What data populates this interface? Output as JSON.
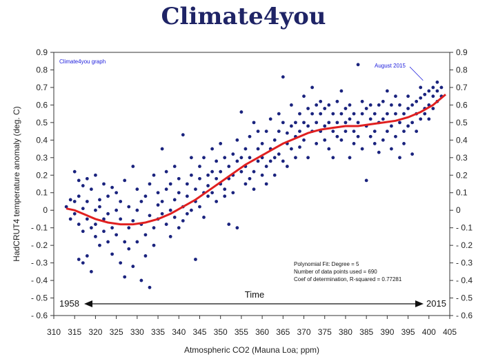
{
  "title": "Climate4you",
  "chart_data": {
    "type": "scatter",
    "xlabel": "Atmospheric CO2 (Mauna Loa; ppm)",
    "ylabel": "HadCRUT4 temperature anomaly (deg. C)",
    "xlim": [
      310,
      405
    ],
    "ylim": [
      -0.6,
      0.9
    ],
    "x_ticks": [
      310,
      315,
      320,
      325,
      330,
      335,
      340,
      345,
      350,
      355,
      360,
      365,
      370,
      375,
      380,
      385,
      390,
      395,
      400,
      405
    ],
    "y_ticks": [
      -0.6,
      -0.5,
      -0.4,
      -0.3,
      -0.2,
      -0.1,
      0,
      0.1,
      0.2,
      0.3,
      0.4,
      0.5,
      0.6,
      0.7,
      0.8,
      0.9
    ],
    "y_tick_labels": [
      "- 0.6",
      "- 0.5",
      "- 0.4",
      "- 0.3",
      "- 0.2",
      "- 0.1",
      "0",
      "0.1",
      "0.2",
      "0.3",
      "0.4",
      "0.5",
      "0.6",
      "0.7",
      "0.8",
      "0.9"
    ],
    "grid": false,
    "watermark": "Climate4you graph",
    "annotation": "August 2015",
    "annotation_point": [
      398.6,
      0.74
    ],
    "time_label": "Time",
    "time_start": "1958",
    "time_end": "2015",
    "fit_text": [
      "Polynomial Fit:  Degree = 5",
      "Number of data points used = 690",
      "Coef of determination, R-squared = 0.77281"
    ],
    "fit_curve": {
      "x": [
        313,
        315,
        317,
        320,
        323,
        326,
        329,
        332,
        335,
        338,
        341,
        344,
        347,
        350,
        353,
        356,
        359,
        362,
        365,
        368,
        371,
        374,
        377,
        380,
        383,
        386,
        389,
        392,
        395,
        398,
        401,
        404
      ],
      "y": [
        0.01,
        0.0,
        -0.02,
        -0.05,
        -0.07,
        -0.08,
        -0.08,
        -0.07,
        -0.05,
        -0.02,
        0.02,
        0.06,
        0.11,
        0.16,
        0.21,
        0.26,
        0.3,
        0.34,
        0.38,
        0.41,
        0.44,
        0.46,
        0.47,
        0.48,
        0.48,
        0.49,
        0.5,
        0.51,
        0.53,
        0.56,
        0.6,
        0.66
      ],
      "color": "#e02020"
    },
    "series": [
      {
        "color": "#1a237e",
        "points": [
          [
            313,
            0.02
          ],
          [
            314,
            0.06
          ],
          [
            314,
            -0.05
          ],
          [
            315,
            0.05
          ],
          [
            315,
            -0.02
          ],
          [
            315,
            0.22
          ],
          [
            316,
            0.17
          ],
          [
            316,
            -0.08
          ],
          [
            316,
            0.08
          ],
          [
            316,
            -0.28
          ],
          [
            317,
            0.14
          ],
          [
            317,
            -0.3
          ],
          [
            317,
            0.01
          ],
          [
            317,
            -0.12
          ],
          [
            318,
            0.18
          ],
          [
            318,
            -0.26
          ],
          [
            318,
            0.05
          ],
          [
            318,
            -0.05
          ],
          [
            319,
            -0.35
          ],
          [
            319,
            0.12
          ],
          [
            319,
            -0.1
          ],
          [
            320,
            0.2
          ],
          [
            320,
            -0.15
          ],
          [
            320,
            0.0
          ],
          [
            320,
            -0.08
          ],
          [
            321,
            0.02
          ],
          [
            321,
            -0.2
          ],
          [
            321,
            0.06
          ],
          [
            322,
            -0.12
          ],
          [
            322,
            0.15
          ],
          [
            322,
            -0.05
          ],
          [
            323,
            -0.18
          ],
          [
            323,
            0.08
          ],
          [
            323,
            -0.02
          ],
          [
            324,
            -0.1
          ],
          [
            324,
            0.13
          ],
          [
            324,
            -0.25
          ],
          [
            325,
            0.0
          ],
          [
            325,
            -0.14
          ],
          [
            325,
            0.1
          ],
          [
            326,
            -0.3
          ],
          [
            326,
            0.05
          ],
          [
            326,
            -0.05
          ],
          [
            327,
            -0.38
          ],
          [
            327,
            0.17
          ],
          [
            327,
            -0.18
          ],
          [
            328,
            -0.22
          ],
          [
            328,
            0.02
          ],
          [
            328,
            -0.1
          ],
          [
            329,
            -0.32
          ],
          [
            329,
            0.25
          ],
          [
            329,
            -0.06
          ],
          [
            330,
            -0.18
          ],
          [
            330,
            0.12
          ],
          [
            330,
            0.0
          ],
          [
            331,
            -0.4
          ],
          [
            331,
            -0.08
          ],
          [
            331,
            0.05
          ],
          [
            332,
            -0.26
          ],
          [
            332,
            0.08
          ],
          [
            332,
            -0.14
          ],
          [
            333,
            -0.44
          ],
          [
            333,
            -0.03
          ],
          [
            333,
            0.15
          ],
          [
            334,
            -0.1
          ],
          [
            334,
            0.2
          ],
          [
            334,
            -0.2
          ],
          [
            335,
            0.03
          ],
          [
            335,
            -0.05
          ],
          [
            335,
            0.1
          ],
          [
            336,
            0.35
          ],
          [
            336,
            -0.02
          ],
          [
            336,
            0.05
          ],
          [
            337,
            0.12
          ],
          [
            337,
            -0.08
          ],
          [
            337,
            0.22
          ],
          [
            338,
            0.0
          ],
          [
            338,
            -0.15
          ],
          [
            338,
            0.15
          ],
          [
            339,
            0.06
          ],
          [
            339,
            -0.04
          ],
          [
            339,
            0.25
          ],
          [
            340,
            0.1
          ],
          [
            340,
            -0.1
          ],
          [
            340,
            0.18
          ],
          [
            341,
            0.43
          ],
          [
            341,
            0.02
          ],
          [
            341,
            -0.06
          ],
          [
            342,
            0.15
          ],
          [
            342,
            0.08
          ],
          [
            342,
            -0.02
          ],
          [
            343,
            0.2
          ],
          [
            343,
            0.0
          ],
          [
            343,
            0.3
          ],
          [
            344,
            -0.28
          ],
          [
            344,
            0.12
          ],
          [
            344,
            0.05
          ],
          [
            345,
            0.18
          ],
          [
            345,
            0.25
          ],
          [
            345,
            0.02
          ],
          [
            346,
            0.1
          ],
          [
            346,
            0.3
          ],
          [
            346,
            -0.04
          ],
          [
            347,
            0.2
          ],
          [
            347,
            0.08
          ],
          [
            347,
            0.14
          ],
          [
            348,
            0.35
          ],
          [
            348,
            0.1
          ],
          [
            348,
            0.22
          ],
          [
            349,
            0.05
          ],
          [
            349,
            0.18
          ],
          [
            349,
            0.28
          ],
          [
            350,
            0.15
          ],
          [
            350,
            0.38
          ],
          [
            350,
            0.22
          ],
          [
            351,
            0.12
          ],
          [
            351,
            0.3
          ],
          [
            351,
            0.08
          ],
          [
            352,
            0.25
          ],
          [
            352,
            0.18
          ],
          [
            352,
            -0.08
          ],
          [
            353,
            0.32
          ],
          [
            353,
            0.2
          ],
          [
            353,
            0.1
          ],
          [
            354,
            -0.1
          ],
          [
            354,
            0.28
          ],
          [
            354,
            0.4
          ],
          [
            355,
            0.56
          ],
          [
            355,
            0.22
          ],
          [
            355,
            0.3
          ],
          [
            356,
            0.15
          ],
          [
            356,
            0.35
          ],
          [
            356,
            0.25
          ],
          [
            357,
            0.42
          ],
          [
            357,
            0.18
          ],
          [
            357,
            0.3
          ],
          [
            358,
            0.5
          ],
          [
            358,
            0.22
          ],
          [
            358,
            0.12
          ],
          [
            359,
            0.35
          ],
          [
            359,
            0.28
          ],
          [
            359,
            0.45
          ],
          [
            360,
            0.2
          ],
          [
            360,
            0.38
          ],
          [
            360,
            0.3
          ],
          [
            361,
            0.15
          ],
          [
            361,
            0.45
          ],
          [
            361,
            0.25
          ],
          [
            362,
            0.52
          ],
          [
            362,
            0.35
          ],
          [
            362,
            0.28
          ],
          [
            363,
            0.2
          ],
          [
            363,
            0.4
          ],
          [
            363,
            0.3
          ],
          [
            364,
            0.55
          ],
          [
            364,
            0.32
          ],
          [
            364,
            0.45
          ],
          [
            365,
            0.76
          ],
          [
            365,
            0.28
          ],
          [
            365,
            0.5
          ],
          [
            366,
            0.38
          ],
          [
            366,
            0.25
          ],
          [
            366,
            0.44
          ],
          [
            367,
            0.6
          ],
          [
            367,
            0.35
          ],
          [
            367,
            0.48
          ],
          [
            368,
            0.42
          ],
          [
            368,
            0.3
          ],
          [
            368,
            0.5
          ],
          [
            369,
            0.55
          ],
          [
            369,
            0.45
          ],
          [
            369,
            0.36
          ],
          [
            370,
            0.65
          ],
          [
            370,
            0.4
          ],
          [
            370,
            0.5
          ],
          [
            371,
            0.48
          ],
          [
            371,
            0.3
          ],
          [
            371,
            0.58
          ],
          [
            372,
            0.7
          ],
          [
            372,
            0.45
          ],
          [
            372,
            0.55
          ],
          [
            373,
            0.5
          ],
          [
            373,
            0.38
          ],
          [
            373,
            0.6
          ],
          [
            374,
            0.55
          ],
          [
            374,
            0.45
          ],
          [
            374,
            0.62
          ],
          [
            375,
            0.48
          ],
          [
            375,
            0.4
          ],
          [
            375,
            0.58
          ],
          [
            376,
            0.6
          ],
          [
            376,
            0.5
          ],
          [
            376,
            0.35
          ],
          [
            377,
            0.45
          ],
          [
            377,
            0.55
          ],
          [
            377,
            0.3
          ],
          [
            378,
            0.62
          ],
          [
            378,
            0.5
          ],
          [
            378,
            0.42
          ],
          [
            379,
            0.55
          ],
          [
            379,
            0.68
          ],
          [
            379,
            0.4
          ],
          [
            380,
            0.5
          ],
          [
            380,
            0.45
          ],
          [
            380,
            0.58
          ],
          [
            381,
            0.3
          ],
          [
            381,
            0.52
          ],
          [
            381,
            0.6
          ],
          [
            382,
            0.45
          ],
          [
            382,
            0.55
          ],
          [
            382,
            0.38
          ],
          [
            383,
            0.83
          ],
          [
            383,
            0.5
          ],
          [
            383,
            0.42
          ],
          [
            384,
            0.55
          ],
          [
            384,
            0.62
          ],
          [
            384,
            0.35
          ],
          [
            385,
            0.48
          ],
          [
            385,
            0.58
          ],
          [
            385,
            0.17
          ],
          [
            386,
            0.52
          ],
          [
            386,
            0.42
          ],
          [
            386,
            0.6
          ],
          [
            387,
            0.45
          ],
          [
            387,
            0.55
          ],
          [
            387,
            0.38
          ],
          [
            388,
            0.6
          ],
          [
            388,
            0.5
          ],
          [
            388,
            0.33
          ],
          [
            389,
            0.62
          ],
          [
            389,
            0.4
          ],
          [
            389,
            0.52
          ],
          [
            390,
            0.68
          ],
          [
            390,
            0.45
          ],
          [
            390,
            0.55
          ],
          [
            391,
            0.35
          ],
          [
            391,
            0.6
          ],
          [
            391,
            0.48
          ],
          [
            392,
            0.55
          ],
          [
            392,
            0.42
          ],
          [
            392,
            0.65
          ],
          [
            393,
            0.3
          ],
          [
            393,
            0.5
          ],
          [
            393,
            0.6
          ],
          [
            394,
            0.45
          ],
          [
            394,
            0.55
          ],
          [
            394,
            0.38
          ],
          [
            395,
            0.58
          ],
          [
            395,
            0.48
          ],
          [
            395,
            0.65
          ],
          [
            396,
            0.5
          ],
          [
            396,
            0.6
          ],
          [
            396,
            0.32
          ],
          [
            397,
            0.55
          ],
          [
            397,
            0.45
          ],
          [
            397,
            0.62
          ],
          [
            398,
            0.52
          ],
          [
            398,
            0.64
          ],
          [
            398,
            0.7
          ],
          [
            399,
            0.58
          ],
          [
            399,
            0.55
          ],
          [
            399,
            0.66
          ],
          [
            400,
            0.68
          ],
          [
            400,
            0.6
          ],
          [
            400,
            0.52
          ],
          [
            401,
            0.65
          ],
          [
            401,
            0.7
          ],
          [
            401,
            0.58
          ],
          [
            402,
            0.73
          ],
          [
            402,
            0.62
          ],
          [
            402,
            0.68
          ],
          [
            403,
            0.7
          ],
          [
            403,
            0.65
          ]
        ]
      }
    ]
  }
}
